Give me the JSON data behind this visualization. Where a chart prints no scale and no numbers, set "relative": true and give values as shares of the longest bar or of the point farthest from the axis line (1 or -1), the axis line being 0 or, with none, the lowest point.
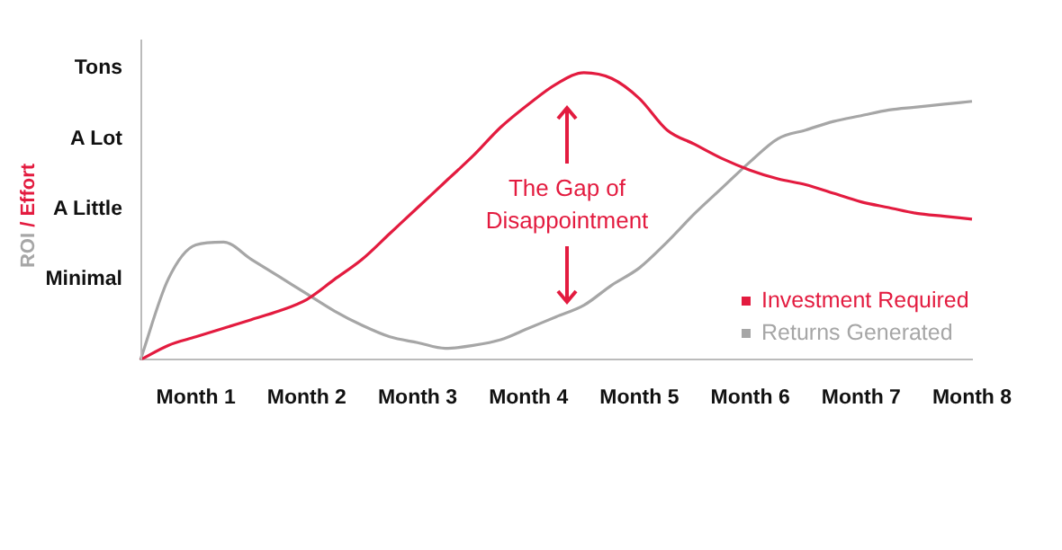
{
  "chart_data": {
    "type": "line",
    "relative": true,
    "annotations": [
      "ROI / Effort",
      "Tons",
      "A Lot",
      "A Little",
      "Minimal",
      "The Gap of Disappointment"
    ],
    "categories": [
      null,
      null,
      "Month 1",
      null,
      null,
      null,
      "Month 2",
      null,
      null,
      null,
      "Month 3",
      null,
      null,
      null,
      "Month 4",
      null,
      null,
      null,
      "Month 5",
      null,
      null,
      null,
      "Month 6",
      null,
      null,
      null,
      "Month 7",
      null,
      null,
      null,
      "Month 8"
    ],
    "grid": false,
    "legend": "right",
    "marker": "none",
    "line_style": "solid",
    "series": [
      {
        "name": "Investment Required",
        "color": "#e31b3f",
        "values": [
          0,
          0.05,
          0.08,
          0.11,
          0.14,
          0.17,
          0.21,
          0.28,
          0.35,
          0.44,
          0.53,
          0.62,
          0.71,
          0.81,
          0.89,
          0.96,
          1,
          0.98,
          0.91,
          0.8,
          0.75,
          0.7,
          0.66,
          0.63,
          0.61,
          0.58,
          0.55,
          0.53,
          0.51,
          0.5,
          0.49
        ]
      },
      {
        "name": "Returns Generated",
        "color": "#a6a6a6",
        "values": [
          0,
          0.28,
          0.4,
          0.41,
          0.35,
          0.29,
          0.23,
          0.17,
          0.12,
          0.08,
          0.06,
          0.04,
          0.05,
          0.07,
          0.11,
          0.15,
          0.19,
          0.26,
          0.32,
          0.41,
          0.51,
          0.6,
          0.69,
          0.77,
          0.8,
          0.83,
          0.85,
          0.87,
          0.88,
          0.89,
          0.9
        ]
      }
    ]
  }
}
